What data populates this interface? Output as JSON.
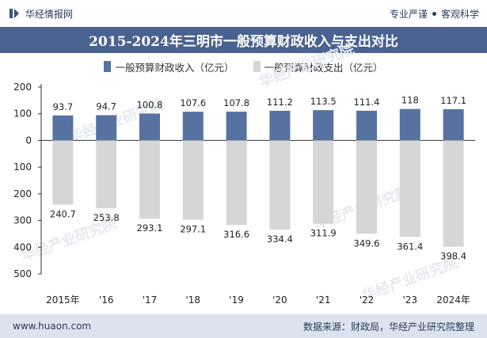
{
  "header": {
    "brand": "华经情报网",
    "tag1": "专业严谨",
    "tag2": "客观科学"
  },
  "chart_data": {
    "type": "bar",
    "title": "2015-2024年三明市一般预算财政收入与支出对比",
    "categories": [
      "2015年",
      "'16",
      "'17",
      "'18",
      "'19",
      "'20",
      "'21",
      "'22",
      "'23",
      "2024年"
    ],
    "series": [
      {
        "name": "一般预算财政收入（亿元）",
        "color": "#5672a1",
        "values": [
          93.7,
          94.7,
          100.8,
          107.6,
          107.8,
          111.2,
          113.5,
          111.4,
          118,
          117.1
        ],
        "labels": [
          "93.7",
          "94.7",
          "100.8",
          "107.6",
          "107.8",
          "111.2",
          "113.5",
          "111.4",
          "118",
          "117.1"
        ]
      },
      {
        "name": "一般预算财政支出（亿元）",
        "color": "#d6d6d6",
        "values": [
          -240.7,
          -253.8,
          -293.1,
          -297.1,
          -316.6,
          -334.4,
          -311.9,
          -349.6,
          -361.4,
          -398.4
        ],
        "labels": [
          "240.7",
          "253.8",
          "293.1",
          "297.1",
          "316.6",
          "334.4",
          "311.9",
          "349.6",
          "361.4",
          "398.4"
        ]
      }
    ],
    "ylim": [
      -500,
      200
    ],
    "yticks": [
      200,
      100,
      0,
      -100,
      -200,
      -300,
      -400,
      -500
    ],
    "ytick_labels": [
      "200",
      "100",
      "0",
      "100",
      "200",
      "300",
      "400",
      "500"
    ],
    "grid": false,
    "legend_position": "top"
  },
  "watermark": {
    "text": "华经产业研究院",
    "url": "www.huaon.com"
  },
  "footer": {
    "url": "www.huaon.com",
    "source": "数据来源：财政局，华经产业研究院整理"
  }
}
